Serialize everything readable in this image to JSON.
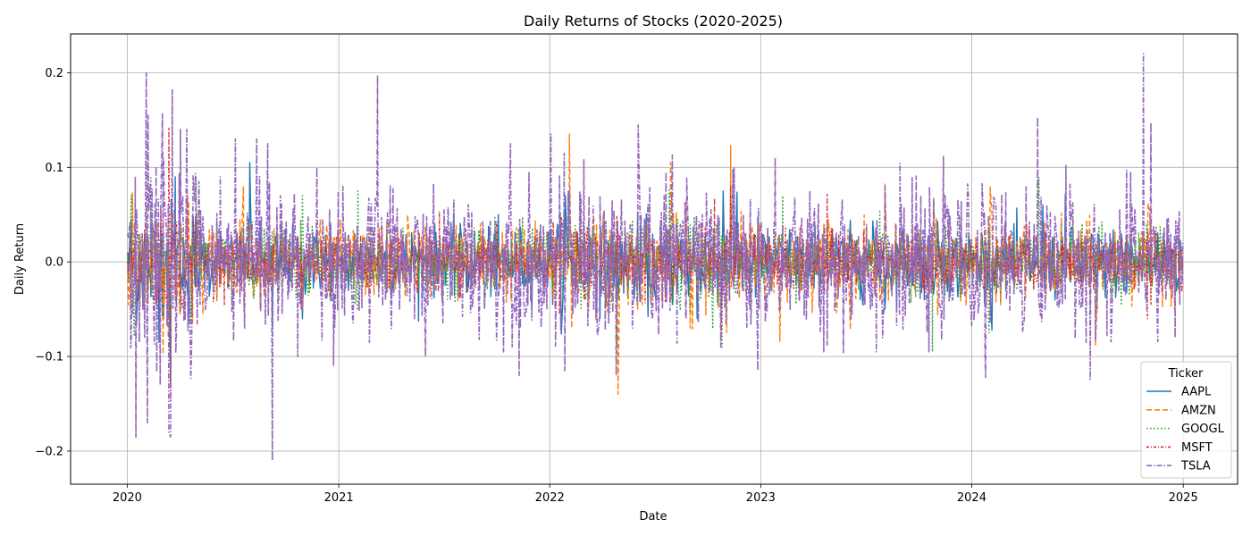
{
  "chart_data": {
    "type": "line",
    "title": "Daily Returns of Stocks (2020-2025)",
    "xlabel": "Date",
    "ylabel": "Daily Return",
    "x_range": [
      "2019-09-25",
      "2025-04-05"
    ],
    "ylim": [
      -0.235,
      0.241
    ],
    "x_ticks": [
      {
        "date": "2020-01-01",
        "label": "2020"
      },
      {
        "date": "2021-01-01",
        "label": "2021"
      },
      {
        "date": "2022-01-01",
        "label": "2022"
      },
      {
        "date": "2023-01-01",
        "label": "2023"
      },
      {
        "date": "2024-01-01",
        "label": "2024"
      },
      {
        "date": "2025-01-01",
        "label": "2025"
      }
    ],
    "y_ticks": [
      {
        "value": 0.2,
        "label": "0.2"
      },
      {
        "value": 0.1,
        "label": "0.1"
      },
      {
        "value": 0.0,
        "label": "0.0"
      },
      {
        "value": -0.1,
        "label": "−0.1"
      },
      {
        "value": -0.2,
        "label": "−0.2"
      }
    ],
    "grid": true,
    "legend": {
      "title": "Ticker",
      "placement": "lower-right"
    },
    "series": [
      {
        "name": "AAPL",
        "color": "#1f77b4",
        "dash": "solid",
        "x": [
          "2020-01-02",
          "2020-02-15",
          "2020-03-16",
          "2020-03-24",
          "2020-05-15",
          "2020-07-31",
          "2020-09-08",
          "2020-10-30",
          "2021-01-28",
          "2021-04-15",
          "2021-07-01",
          "2021-10-01",
          "2022-01-28",
          "2022-04-29",
          "2022-07-29",
          "2022-09-13",
          "2022-10-28",
          "2022-11-10",
          "2023-02-03",
          "2023-05-05",
          "2023-08-04",
          "2023-11-10",
          "2024-02-02",
          "2024-05-03",
          "2024-06-11",
          "2024-08-05",
          "2024-10-01",
          "2024-12-31"
        ],
        "y": [
          0.01,
          -0.02,
          -0.13,
          0.09,
          0.02,
          0.105,
          -0.07,
          -0.06,
          0.03,
          -0.02,
          0.02,
          -0.03,
          0.07,
          -0.04,
          0.03,
          -0.06,
          0.075,
          0.08,
          0.02,
          0.03,
          -0.05,
          0.02,
          -0.03,
          0.06,
          0.072,
          -0.05,
          0.02,
          0.0
        ]
      },
      {
        "name": "AMZN",
        "color": "#ff7f0e",
        "dash": "dashed",
        "x": [
          "2020-01-02",
          "2020-03-12",
          "2020-04-14",
          "2020-07-20",
          "2020-10-30",
          "2021-04-30",
          "2021-08-01",
          "2022-02-04",
          "2022-02-08",
          "2022-04-29",
          "2022-06-01",
          "2022-07-29",
          "2022-09-01",
          "2022-11-10",
          "2023-02-03",
          "2023-04-28",
          "2023-08-04",
          "2023-10-27",
          "2024-02-02",
          "2024-08-02",
          "2024-11-01",
          "2024-12-31"
        ],
        "y": [
          0.0,
          -0.08,
          0.07,
          0.08,
          -0.05,
          0.05,
          -0.075,
          0.135,
          -0.07,
          -0.14,
          0.03,
          0.105,
          -0.07,
          0.123,
          -0.084,
          0.045,
          0.083,
          0.068,
          0.079,
          -0.088,
          0.062,
          0.0
        ]
      },
      {
        "name": "GOOGL",
        "color": "#2ca02c",
        "dash": "dotted",
        "x": [
          "2020-01-02",
          "2020-03-16",
          "2020-04-29",
          "2020-06-30",
          "2020-10-30",
          "2021-02-03",
          "2021-07-28",
          "2022-02-02",
          "2022-04-27",
          "2022-07-27",
          "2022-10-26",
          "2023-02-08",
          "2023-04-26",
          "2023-07-26",
          "2023-10-25",
          "2024-01-31",
          "2024-04-26",
          "2024-07-24",
          "2024-10-30",
          "2024-12-31"
        ],
        "y": [
          0.01,
          -0.12,
          0.09,
          -0.05,
          0.07,
          0.075,
          0.03,
          0.075,
          -0.09,
          0.076,
          -0.09,
          0.07,
          0.04,
          0.055,
          -0.095,
          -0.075,
          0.09,
          -0.05,
          0.04,
          0.0
        ]
      },
      {
        "name": "MSFT",
        "color": "#d62728",
        "dash": "dashdot2",
        "x": [
          "2020-01-02",
          "2020-03-13",
          "2020-03-16",
          "2020-04-30",
          "2020-10-28",
          "2021-03-12",
          "2022-01-26",
          "2022-04-27",
          "2022-10-25",
          "2022-11-10",
          "2023-04-26",
          "2023-08-01",
          "2024-01-31",
          "2024-07-30",
          "2024-10-31",
          "2024-12-31"
        ],
        "y": [
          0.0,
          0.142,
          -0.147,
          0.05,
          -0.05,
          0.03,
          0.03,
          0.048,
          -0.077,
          0.08,
          0.072,
          0.02,
          0.02,
          -0.03,
          -0.06,
          0.0
        ]
      },
      {
        "name": "TSLA",
        "color": "#9467bd",
        "dash": "dashdot",
        "x": [
          "2020-01-02",
          "2020-01-15",
          "2020-01-28",
          "2020-02-03",
          "2020-02-05",
          "2020-02-27",
          "2020-03-04",
          "2020-03-13",
          "2020-03-16",
          "2020-03-19",
          "2020-04-02",
          "2020-04-13",
          "2020-04-21",
          "2020-05-04",
          "2020-06-10",
          "2020-07-06",
          "2020-07-22",
          "2020-08-12",
          "2020-08-31",
          "2020-09-08",
          "2020-09-22",
          "2020-10-22",
          "2020-11-24",
          "2021-01-08",
          "2021-02-23",
          "2021-03-09",
          "2021-05-12",
          "2021-10-25",
          "2021-11-09",
          "2022-01-03",
          "2022-01-27",
          "2022-02-24",
          "2022-04-26",
          "2022-05-24",
          "2022-07-21",
          "2022-08-25",
          "2022-10-24",
          "2022-12-27",
          "2023-01-26",
          "2023-04-20",
          "2023-07-20",
          "2023-08-04",
          "2023-10-19",
          "2024-01-25",
          "2024-04-24",
          "2024-06-12",
          "2024-07-24",
          "2024-10-24",
          "2024-11-06",
          "2024-12-18",
          "2024-12-31"
        ],
        "y": [
          0.03,
          0.09,
          -0.05,
          0.2,
          -0.17,
          -0.13,
          0.11,
          -0.18,
          -0.185,
          0.182,
          0.14,
          0.14,
          -0.1,
          0.085,
          0.09,
          0.13,
          -0.07,
          0.13,
          0.125,
          -0.21,
          0.07,
          -0.1,
          0.1,
          0.08,
          -0.085,
          0.197,
          -0.06,
          0.125,
          -0.12,
          0.135,
          -0.115,
          0.07,
          -0.12,
          -0.07,
          0.095,
          -0.06,
          -0.09,
          -0.115,
          0.11,
          -0.095,
          -0.095,
          0.08,
          -0.095,
          -0.122,
          0.153,
          0.102,
          -0.124,
          0.22,
          0.147,
          -0.08,
          0.02
        ]
      }
    ]
  }
}
